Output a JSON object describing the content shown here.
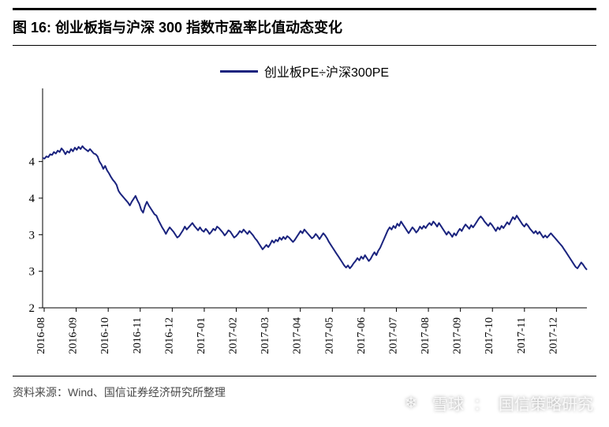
{
  "title": "图 16: 创业板指与沪深 300 指数市盈率比值动态变化",
  "legend": {
    "label": "创业板PE÷沪深300PE",
    "color": "#1a237e",
    "line_width": 2
  },
  "source": "资料来源：Wind、国信证券经济研究所整理",
  "watermark": {
    "icon": "❄",
    "brand": "雪球",
    "sep": "：",
    "author": "国信策略研究"
  },
  "chart": {
    "type": "line",
    "background_color": "#ffffff",
    "axis_color": "#000000",
    "ylim": [
      2.0,
      5.0
    ],
    "yticks": [
      2,
      3,
      3,
      4,
      4
    ],
    "ytick_values": [
      2.0,
      2.5,
      3.0,
      3.5,
      4.0
    ],
    "xticks": [
      "2016-08",
      "2016-09",
      "2016-10",
      "2016-11",
      "2016-12",
      "2017-01",
      "2017-02",
      "2017-03",
      "2017-04",
      "2017-05",
      "2017-06",
      "2017-07",
      "2017-08",
      "2017-09",
      "2017-10",
      "2017-11",
      "2017-12"
    ],
    "series": {
      "color": "#1a237e",
      "line_width": 2,
      "y": [
        4.05,
        4.04,
        4.07,
        4.06,
        4.1,
        4.09,
        4.13,
        4.11,
        4.15,
        4.13,
        4.18,
        4.15,
        4.1,
        4.14,
        4.12,
        4.17,
        4.14,
        4.19,
        4.16,
        4.2,
        4.17,
        4.21,
        4.18,
        4.16,
        4.14,
        4.17,
        4.14,
        4.11,
        4.1,
        4.07,
        4.0,
        3.96,
        3.9,
        3.94,
        3.88,
        3.84,
        3.79,
        3.75,
        3.72,
        3.68,
        3.6,
        3.56,
        3.53,
        3.5,
        3.47,
        3.44,
        3.4,
        3.45,
        3.49,
        3.53,
        3.47,
        3.42,
        3.34,
        3.3,
        3.39,
        3.45,
        3.4,
        3.36,
        3.32,
        3.28,
        3.26,
        3.2,
        3.15,
        3.1,
        3.06,
        3.01,
        3.06,
        3.1,
        3.07,
        3.04,
        3.0,
        2.96,
        2.98,
        3.02,
        3.06,
        3.11,
        3.07,
        3.1,
        3.13,
        3.16,
        3.12,
        3.09,
        3.06,
        3.1,
        3.06,
        3.04,
        3.08,
        3.05,
        3.01,
        3.04,
        3.08,
        3.06,
        3.11,
        3.09,
        3.06,
        3.03,
        2.99,
        3.02,
        3.06,
        3.04,
        3.0,
        2.96,
        2.98,
        3.01,
        3.05,
        3.03,
        3.07,
        3.04,
        3.01,
        3.05,
        3.02,
        2.99,
        2.95,
        2.92,
        2.88,
        2.84,
        2.8,
        2.83,
        2.86,
        2.83,
        2.87,
        2.92,
        2.89,
        2.93,
        2.91,
        2.96,
        2.93,
        2.97,
        2.94,
        2.98,
        2.96,
        2.93,
        2.9,
        2.93,
        2.97,
        3.01,
        3.05,
        3.02,
        3.07,
        3.04,
        3.01,
        2.98,
        2.95,
        2.97,
        3.01,
        2.98,
        2.94,
        2.98,
        3.02,
        2.99,
        2.95,
        2.9,
        2.86,
        2.82,
        2.78,
        2.74,
        2.7,
        2.66,
        2.62,
        2.58,
        2.55,
        2.58,
        2.54,
        2.57,
        2.61,
        2.64,
        2.68,
        2.65,
        2.7,
        2.67,
        2.72,
        2.68,
        2.64,
        2.67,
        2.72,
        2.76,
        2.72,
        2.78,
        2.82,
        2.88,
        2.94,
        3.0,
        3.06,
        3.1,
        3.07,
        3.12,
        3.09,
        3.15,
        3.12,
        3.18,
        3.14,
        3.1,
        3.06,
        3.02,
        3.06,
        3.1,
        3.07,
        3.03,
        3.06,
        3.11,
        3.08,
        3.12,
        3.09,
        3.13,
        3.16,
        3.13,
        3.18,
        3.15,
        3.11,
        3.16,
        3.12,
        3.08,
        3.04,
        3.0,
        3.04,
        3.01,
        2.97,
        3.02,
        2.99,
        3.04,
        3.08,
        3.05,
        3.1,
        3.14,
        3.11,
        3.08,
        3.13,
        3.1,
        3.14,
        3.18,
        3.22,
        3.25,
        3.22,
        3.18,
        3.15,
        3.12,
        3.16,
        3.13,
        3.09,
        3.05,
        3.1,
        3.07,
        3.12,
        3.09,
        3.13,
        3.17,
        3.14,
        3.19,
        3.24,
        3.21,
        3.26,
        3.22,
        3.18,
        3.14,
        3.11,
        3.15,
        3.12,
        3.08,
        3.05,
        3.02,
        3.05,
        3.01,
        3.04,
        3.0,
        2.96,
        2.99,
        2.96,
        2.99,
        3.02,
        2.99,
        2.96,
        2.93,
        2.9,
        2.87,
        2.84,
        2.8,
        2.76,
        2.72,
        2.68,
        2.64,
        2.6,
        2.56,
        2.54,
        2.58,
        2.62,
        2.59,
        2.55,
        2.52
      ]
    }
  }
}
